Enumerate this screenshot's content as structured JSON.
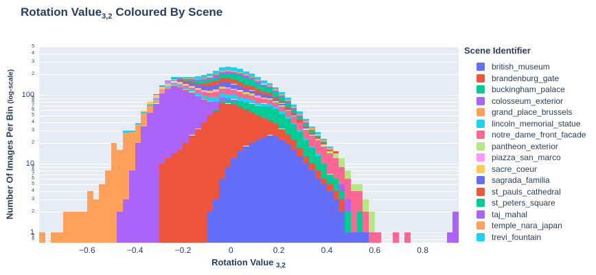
{
  "title": {
    "prefix": "Rotation Value",
    "subscript": "3,2",
    "suffix": "Coloured By Scene"
  },
  "axes": {
    "x": {
      "title": "Rotation Value",
      "subscript": "3,2",
      "tick_labels": [
        "−0.6",
        "−0.4",
        "−0.2",
        "0",
        "0.2",
        "0.4",
        "0.6",
        "0.8"
      ],
      "tick_values": [
        -0.6,
        -0.4,
        -0.2,
        0,
        0.2,
        0.4,
        0.6,
        0.8
      ]
    },
    "y": {
      "title": "Number Of Images Per Bin",
      "note": "(log-scale)",
      "major_ticks": [
        1,
        10,
        100
      ]
    }
  },
  "legend": {
    "title": "Scene Identifier"
  },
  "chart_data": {
    "type": "bar",
    "stacked": true,
    "log_y": true,
    "title": "Rotation Value 3,2 Coloured By Scene",
    "xlabel": "Rotation Value 3,2",
    "ylabel": "Number Of Images Per Bin (log-scale)",
    "plot_bg": "#E5ECF6",
    "grid_color": "#FFFFFF",
    "text_color": "#2a3f5f",
    "x_range": [
      -0.8,
      0.95
    ],
    "y_log_range": [
      -0.15,
      2.7
    ],
    "bin_start": -0.8,
    "bin_size": 0.025,
    "n_bins": 70,
    "legend_position": "right",
    "series": [
      {
        "name": "british_museum",
        "color": "#636EFA",
        "offset": 28,
        "counts": [
          2,
          3,
          6,
          9,
          12,
          15,
          18,
          20,
          22,
          24,
          26,
          25,
          22,
          19,
          16,
          13,
          10,
          8,
          6,
          5,
          4,
          3,
          2,
          1,
          1,
          1,
          1
        ]
      },
      {
        "name": "brandenburg_gate",
        "color": "#EF553B",
        "offset": 20,
        "counts": [
          10,
          12,
          14,
          16,
          20,
          26,
          32,
          40,
          48,
          56,
          70,
          66,
          60,
          52,
          44,
          36,
          28,
          22,
          17,
          13,
          10,
          8,
          6,
          4,
          3,
          2,
          2,
          1,
          1,
          1,
          1
        ]
      },
      {
        "name": "buckingham_palace",
        "color": "#00CC96",
        "offset": 29,
        "counts": [
          3,
          5,
          8,
          10,
          12,
          15,
          18,
          20,
          22,
          25,
          24,
          21,
          18,
          15,
          12,
          9,
          7,
          5,
          4,
          2,
          2,
          1,
          1,
          0,
          1
        ]
      },
      {
        "name": "colosseum_exterior",
        "color": "#AB63FA",
        "offset": 13,
        "counts": [
          2,
          3,
          8,
          20,
          35,
          55,
          75,
          95,
          110,
          120,
          112,
          98,
          82,
          64,
          46,
          30,
          18,
          10,
          6,
          4,
          2,
          1,
          1,
          0,
          0,
          0,
          0,
          0,
          0,
          0,
          0,
          0,
          0,
          0,
          0,
          0,
          0,
          1,
          1
        ]
      },
      {
        "name": "grand_place_brussels",
        "color": "#FFA15A",
        "offset": 0,
        "counts": [
          1,
          0,
          1,
          1,
          2,
          2,
          2,
          2,
          4,
          3,
          5,
          8,
          20,
          14,
          25,
          21,
          17,
          19,
          14,
          11,
          9,
          7,
          6,
          5,
          4,
          3,
          2,
          1,
          1
        ]
      },
      {
        "name": "lincoln_memorial_statue",
        "color": "#19D3F3",
        "offset": 14,
        "counts": [
          2,
          1,
          2,
          2,
          3,
          3,
          4,
          4,
          5,
          6,
          7,
          8,
          9,
          10,
          12,
          13,
          14,
          14,
          13,
          12,
          10,
          9,
          8,
          7,
          6,
          5,
          4,
          3,
          2,
          2,
          1,
          1,
          1
        ]
      },
      {
        "name": "notre_dame_front_facade",
        "color": "#FF6692",
        "offset": 22,
        "counts": [
          2,
          3,
          5,
          8,
          10,
          13,
          16,
          18,
          20,
          20,
          19,
          18,
          17,
          16,
          15,
          14,
          13,
          12,
          12,
          11,
          10,
          9,
          8,
          8,
          8,
          8,
          7,
          6,
          4,
          3,
          3,
          2,
          1,
          1,
          1,
          0,
          0,
          1,
          0,
          1
        ]
      },
      {
        "name": "pantheon_exterior",
        "color": "#B6E880",
        "offset": 27,
        "counts": [
          2,
          1,
          2,
          1,
          2,
          2,
          1,
          1,
          1,
          1,
          1,
          1,
          1,
          1,
          0,
          1,
          0,
          1,
          0,
          1,
          1,
          1,
          2,
          3,
          2,
          1,
          1,
          1,
          1
        ]
      },
      {
        "name": "piazza_san_marco",
        "color": "#FF97FF",
        "offset": 18,
        "counts": [
          2,
          3,
          4,
          5,
          6,
          5,
          4,
          3,
          3,
          2,
          2,
          2,
          2,
          2,
          1,
          1,
          1,
          1,
          1,
          0,
          1
        ]
      },
      {
        "name": "sacre_coeur",
        "color": "#FECB52",
        "offset": 17,
        "counts": [
          3,
          5,
          8,
          10,
          12,
          10,
          8,
          6,
          5,
          5,
          4,
          4,
          4,
          4,
          3,
          3,
          3,
          2,
          2,
          2,
          1,
          1,
          1,
          1,
          1
        ]
      },
      {
        "name": "sagrada_familia",
        "color": "#636EFA",
        "offset": 20,
        "counts": [
          2,
          3,
          5,
          6,
          8,
          10,
          12,
          15,
          18,
          20,
          22,
          21,
          19,
          17,
          14,
          12,
          10,
          8,
          6,
          5,
          4,
          3,
          2,
          1,
          1
        ]
      },
      {
        "name": "st_pauls_cathedral",
        "color": "#EF553B",
        "offset": 19,
        "counts": [
          2,
          3,
          4,
          5,
          6,
          8,
          10,
          12,
          15,
          18,
          21,
          24,
          25,
          24,
          22,
          19,
          16,
          13,
          11,
          9,
          7,
          6,
          5,
          4,
          3,
          2,
          2,
          1,
          1,
          1,
          1
        ]
      },
      {
        "name": "st_peters_square",
        "color": "#00CC96",
        "offset": 22,
        "counts": [
          2,
          3,
          5,
          7,
          9,
          12,
          15,
          19,
          23,
          27,
          31,
          34,
          35,
          33,
          29,
          25,
          20,
          16,
          12,
          9,
          6,
          4,
          3,
          2,
          1,
          1
        ]
      },
      {
        "name": "taj_mahal",
        "color": "#AB63FA",
        "offset": 21,
        "counts": [
          2,
          3,
          4,
          6,
          7,
          9,
          11,
          12,
          14,
          15,
          16,
          15,
          14,
          12,
          11,
          9,
          8,
          7,
          6,
          5,
          4,
          3,
          2,
          2,
          1,
          1,
          0,
          0,
          0,
          0,
          0,
          0,
          0,
          0,
          0,
          0,
          0,
          0,
          0,
          0,
          0,
          0,
          0,
          0,
          0,
          0,
          0,
          1,
          2
        ]
      },
      {
        "name": "temple_nara_japan",
        "color": "#FFA15A",
        "offset": 24,
        "counts": [
          2,
          3,
          3,
          4,
          5,
          6,
          7,
          8,
          9,
          10,
          9,
          8,
          7,
          6,
          6,
          5,
          4,
          4,
          3,
          3,
          2,
          2,
          1,
          1,
          1
        ]
      },
      {
        "name": "trevi_fountain",
        "color": "#19D3F3",
        "offset": 20,
        "counts": [
          2,
          3,
          5,
          7,
          9,
          12,
          15,
          18,
          21,
          24,
          27,
          28,
          27,
          25,
          22,
          19,
          16,
          13,
          11,
          9,
          7,
          6,
          5,
          4,
          3,
          2,
          2,
          1,
          1
        ]
      }
    ]
  }
}
